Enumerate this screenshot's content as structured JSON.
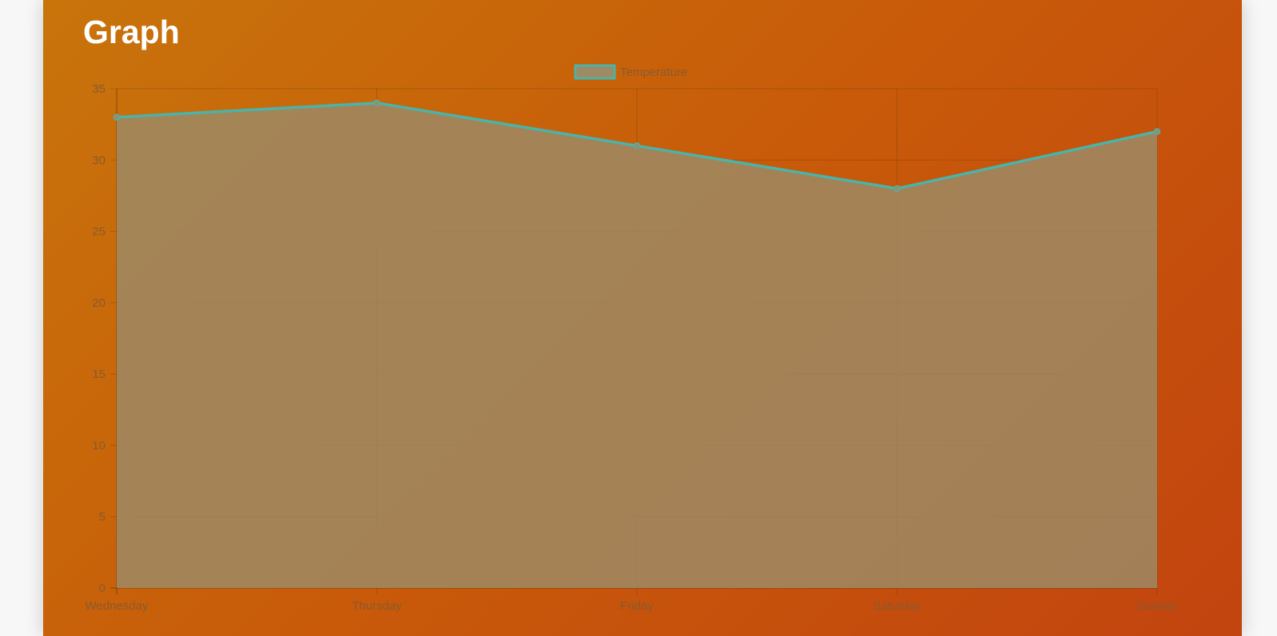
{
  "page": {
    "title": "Graph"
  },
  "chart_data": {
    "type": "area",
    "categories": [
      "Wednesday",
      "Thursday",
      "Friday",
      "Saturday",
      "Sunday"
    ],
    "series": [
      {
        "name": "Temperature",
        "values": [
          33,
          34,
          31,
          28,
          32
        ],
        "color": "#4ab3aa",
        "fill": "#9e8a64"
      }
    ],
    "y_ticks": [
      "0",
      "5",
      "10",
      "15",
      "20",
      "25",
      "30",
      "35"
    ],
    "ylim": [
      0,
      35
    ],
    "grid": true,
    "legend": "top-center"
  }
}
